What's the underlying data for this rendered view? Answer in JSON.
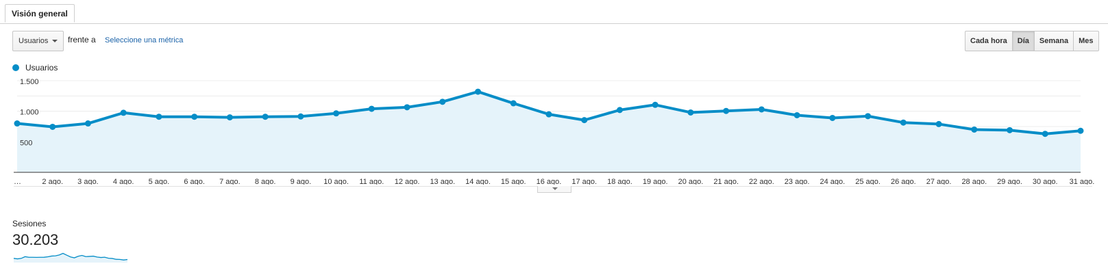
{
  "tab": {
    "label": "Visión general"
  },
  "controls": {
    "metric_select": "Usuarios",
    "vs_label": "frente a",
    "select_metric_link": "Seleccione una métrica",
    "periods": [
      {
        "label": "Cada hora",
        "active": false
      },
      {
        "label": "Día",
        "active": true
      },
      {
        "label": "Semana",
        "active": false
      },
      {
        "label": "Mes",
        "active": false
      }
    ]
  },
  "legend": {
    "label": "Usuarios",
    "color": "#058dc7"
  },
  "chart_data": {
    "type": "area",
    "series": [
      {
        "name": "Usuarios",
        "color": "#058dc7",
        "values": [
          800,
          745,
          800,
          975,
          910,
          910,
          900,
          910,
          915,
          965,
          1040,
          1065,
          1155,
          1320,
          1130,
          950,
          855,
          1020,
          1105,
          980,
          1005,
          1030,
          935,
          890,
          920,
          815,
          790,
          700,
          690,
          630,
          680
        ]
      }
    ],
    "x_labels": [
      "…",
      "2 ago.",
      "3 ago.",
      "4 ago.",
      "5 ago.",
      "6 ago.",
      "7 ago.",
      "8 ago.",
      "9 ago.",
      "10 ago.",
      "11 ago.",
      "12 ago.",
      "13 ago.",
      "14 ago.",
      "15 ago.",
      "16 ago.",
      "17 ago.",
      "18 ago.",
      "19 ago.",
      "20 ago.",
      "21 ago.",
      "22 ago.",
      "23 ago.",
      "24 ago.",
      "25 ago.",
      "26 ago.",
      "27 ago.",
      "28 ago.",
      "29 ago.",
      "30 ago.",
      "31 ago."
    ],
    "y_ticks": [
      {
        "value": 500,
        "label": "500"
      },
      {
        "value": 1000,
        "label": "1.000"
      },
      {
        "value": 1500,
        "label": "1.500"
      }
    ],
    "ylim": [
      0,
      1500
    ],
    "grid": true,
    "legend_position": "top-left"
  },
  "kpi": {
    "label": "Sesiones",
    "value": "30.203"
  }
}
